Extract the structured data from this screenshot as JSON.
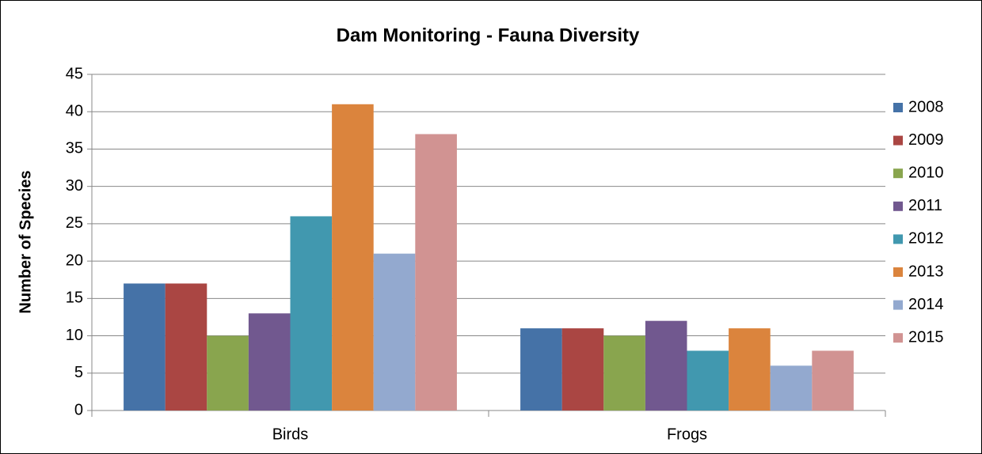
{
  "chart_data": {
    "type": "bar",
    "title": "Dam Monitoring - Fauna Diversity",
    "y_label": "Number of Species",
    "categories": [
      "Birds",
      "Frogs"
    ],
    "series": [
      {
        "name": "2008",
        "color": "#4572a7",
        "values": [
          17,
          11
        ]
      },
      {
        "name": "2009",
        "color": "#aa4643",
        "values": [
          17,
          11
        ]
      },
      {
        "name": "2010",
        "color": "#89a54e",
        "values": [
          10,
          10
        ]
      },
      {
        "name": "2011",
        "color": "#71588f",
        "values": [
          13,
          12
        ]
      },
      {
        "name": "2012",
        "color": "#4198af",
        "values": [
          26,
          8
        ]
      },
      {
        "name": "2013",
        "color": "#db843d",
        "values": [
          41,
          11
        ]
      },
      {
        "name": "2014",
        "color": "#93a9cf",
        "values": [
          21,
          6
        ]
      },
      {
        "name": "2015",
        "color": "#d19392",
        "values": [
          37,
          8
        ]
      }
    ],
    "ylim": [
      0,
      45
    ],
    "yticks": [
      0,
      5,
      10,
      15,
      20,
      25,
      30,
      35,
      40,
      45
    ],
    "grid": true,
    "legend": "right"
  }
}
